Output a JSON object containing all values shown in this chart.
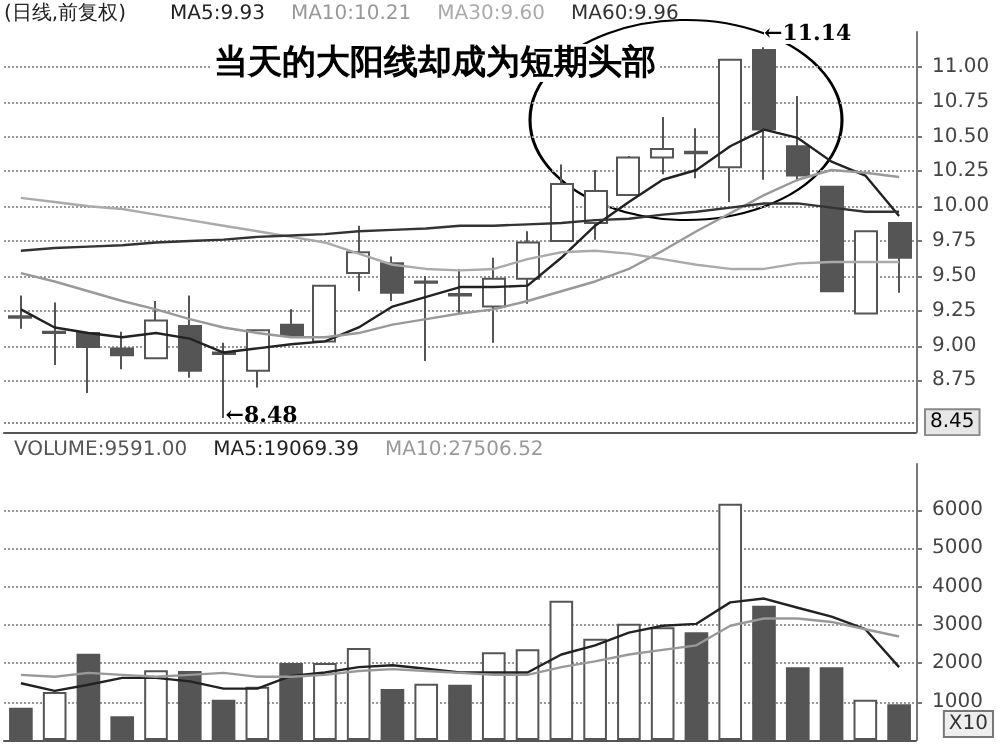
{
  "chart_data": [
    {
      "type": "candlestick",
      "subtitle": "(日线,前复权)",
      "annotations": [
        "当天的大阳线却成为短期头部",
        {
          "text": "←8.48",
          "y": 8.48
        },
        "←11.14"
      ],
      "categories": [
        null,
        null,
        null,
        null,
        null,
        null,
        null,
        null,
        null,
        null,
        null,
        null,
        null,
        null,
        null,
        null,
        null,
        null,
        null,
        null,
        null,
        null,
        null,
        null,
        null,
        null,
        null
      ],
      "series": [
        {
          "ohlc": [
            [
              9.2,
              9.36,
              9.12,
              9.21
            ],
            [
              9.09,
              9.31,
              8.86,
              9.1
            ],
            [
              9.09,
              9.09,
              8.66,
              8.99
            ],
            [
              8.98,
              9.1,
              8.83,
              8.93
            ],
            [
              8.91,
              9.32,
              8.91,
              9.18
            ],
            [
              9.14,
              9.36,
              8.77,
              8.82
            ],
            [
              8.94,
              9.02,
              8.48,
              8.95
            ],
            [
              8.82,
              9.11,
              8.7,
              9.11
            ],
            [
              9.15,
              9.26,
              9.07,
              9.07
            ],
            [
              9.03,
              9.43,
              9.03,
              9.43
            ],
            [
              9.52,
              9.86,
              9.39,
              9.67
            ],
            [
              9.59,
              9.64,
              9.32,
              9.38
            ],
            [
              9.45,
              9.5,
              8.89,
              9.46
            ],
            [
              9.36,
              9.55,
              9.23,
              9.37
            ],
            [
              9.28,
              9.63,
              9.02,
              9.48
            ],
            [
              9.48,
              9.82,
              9.3,
              9.74
            ],
            [
              9.75,
              10.3,
              9.75,
              10.16
            ],
            [
              9.88,
              10.26,
              9.76,
              10.11
            ],
            [
              10.08,
              10.36,
              10.08,
              10.35
            ],
            [
              10.35,
              10.64,
              10.23,
              10.41
            ],
            [
              10.38,
              10.56,
              10.2,
              10.39
            ],
            [
              10.28,
              11.05,
              10.03,
              11.05
            ],
            [
              11.12,
              11.14,
              10.19,
              10.55
            ],
            [
              10.43,
              10.79,
              10.18,
              10.22
            ],
            [
              10.14,
              10.14,
              9.39,
              9.39
            ],
            [
              9.23,
              9.82,
              9.23,
              9.82
            ],
            [
              9.88,
              9.88,
              9.38,
              9.63
            ]
          ],
          "colors": [
            "#555555",
            "#555555",
            "#555555",
            "#555555",
            "#ffffff",
            "#555555",
            "#555555",
            "#ffffff",
            "#555555",
            "#ffffff",
            "#ffffff",
            "#555555",
            "#555555",
            "#555555",
            "#ffffff",
            "#ffffff",
            "#ffffff",
            "#ffffff",
            "#ffffff",
            "#ffffff",
            "#555555",
            "#ffffff",
            "#555555",
            "#555555",
            "#555555",
            "#ffffff",
            "#555555"
          ]
        },
        {
          "type": "line",
          "name": "MA5:9.93",
          "color": "#222222",
          "values": [
            9.26,
            9.13,
            9.09,
            9.06,
            9.09,
            9.05,
            8.95,
            8.98,
            9.01,
            9.03,
            9.13,
            9.28,
            9.35,
            9.42,
            9.42,
            9.43,
            9.63,
            9.86,
            10.03,
            10.19,
            10.26,
            10.43,
            10.55,
            10.49,
            10.32,
            10.22,
            9.93
          ]
        },
        {
          "type": "line",
          "name": "MA10:10.21",
          "color": "#999999",
          "values": [
            9.52,
            9.46,
            9.39,
            9.32,
            9.26,
            9.19,
            9.13,
            9.09,
            9.06,
            9.06,
            9.09,
            9.15,
            9.19,
            9.23,
            9.26,
            9.32,
            9.39,
            9.46,
            9.55,
            9.68,
            9.82,
            9.95,
            10.08,
            10.19,
            10.26,
            10.24,
            10.21
          ]
        },
        {
          "type": "line",
          "name": "MA30:9.60",
          "color": "#aaaaaa",
          "values": [
            10.06,
            10.03,
            10.0,
            9.98,
            9.94,
            9.9,
            9.86,
            9.82,
            9.78,
            9.74,
            9.66,
            9.58,
            9.55,
            9.54,
            9.55,
            9.62,
            9.67,
            9.68,
            9.66,
            9.62,
            9.58,
            9.55,
            9.55,
            9.59,
            9.6,
            9.6,
            9.6
          ]
        },
        {
          "type": "line",
          "name": "MA60:9.96",
          "color": "#333333",
          "values": [
            9.68,
            9.7,
            9.71,
            9.72,
            9.74,
            9.75,
            9.76,
            9.78,
            9.79,
            9.8,
            9.82,
            9.83,
            9.84,
            9.86,
            9.86,
            9.87,
            9.88,
            9.9,
            9.91,
            9.94,
            9.96,
            9.99,
            10.02,
            10.02,
            9.99,
            9.96,
            9.96
          ]
        }
      ],
      "ylim": [
        8.38,
        11.25
      ],
      "yticks": [
        {
          "value": 8.75,
          "label": "8.75"
        },
        {
          "value": 9,
          "label": "9.00"
        },
        {
          "value": 9.25,
          "label": "9.25"
        },
        {
          "value": 9.5,
          "label": "9.50"
        },
        {
          "value": 9.75,
          "label": "9.75"
        },
        {
          "value": 10,
          "label": "10.00"
        },
        {
          "value": 10.25,
          "label": "10.25"
        },
        {
          "value": 10.5,
          "label": "10.50"
        },
        {
          "value": 10.75,
          "label": "10.75"
        },
        {
          "value": 11,
          "label": "11.00"
        }
      ],
      "ref_lines": [
        {
          "axis": "y",
          "value": 8.45,
          "label": "8.45",
          "line_style": "dotted"
        }
      ],
      "grid": "y",
      "legend": "top",
      "tick_labels": "y",
      "marker": "none"
    },
    {
      "type": "bar",
      "annotations": [
        "X10"
      ],
      "categories": [
        null,
        null,
        null,
        null,
        null,
        null,
        null,
        null,
        null,
        null,
        null,
        null,
        null,
        null,
        null,
        null,
        null,
        null,
        null,
        null,
        null,
        null,
        null,
        null,
        null,
        null,
        null
      ],
      "series": [
        {
          "name": "VOLUME:9591.00",
          "color": "#555555",
          "values": [
            840,
            1250,
            2250,
            620,
            1820,
            1800,
            1050,
            1390,
            2010,
            2010,
            2400,
            1330,
            1470,
            1440,
            2290,
            2370,
            3630,
            2640,
            3030,
            2940,
            2810,
            6160,
            3500,
            1900,
            1900,
            1050,
            930
          ],
          "colors": [
            "#555555",
            "#ffffff",
            "#555555",
            "#555555",
            "#ffffff",
            "#555555",
            "#555555",
            "#ffffff",
            "#555555",
            "#ffffff",
            "#ffffff",
            "#555555",
            "#ffffff",
            "#555555",
            "#ffffff",
            "#ffffff",
            "#ffffff",
            "#ffffff",
            "#ffffff",
            "#ffffff",
            "#555555",
            "#ffffff",
            "#555555",
            "#555555",
            "#555555",
            "#ffffff",
            "#555555"
          ]
        },
        {
          "type": "line",
          "name": "MA5:19069.39",
          "color": "#222222",
          "values": [
            1480,
            1280,
            1440,
            1620,
            1620,
            1530,
            1340,
            1340,
            1670,
            1760,
            1900,
            1950,
            1860,
            1760,
            1760,
            1760,
            2230,
            2470,
            2800,
            2980,
            3030,
            3590,
            3690,
            3450,
            3220,
            2890,
            1900
          ]
        },
        {
          "type": "line",
          "name": "MA10:27506.52",
          "color": "#999999",
          "values": [
            1700,
            1650,
            1750,
            1700,
            1650,
            1700,
            1750,
            1650,
            1650,
            1700,
            1800,
            1850,
            1800,
            1750,
            1700,
            1700,
            1900,
            2050,
            2230,
            2350,
            2470,
            2980,
            3170,
            3170,
            3080,
            2890,
            2700
          ]
        }
      ],
      "ylim": [
        0,
        7200
      ],
      "yticks": [
        1000,
        2000,
        3000,
        4000,
        5000,
        6000
      ],
      "grid": "y",
      "legend": "top left",
      "tick_labels": "y",
      "marker": "none"
    }
  ]
}
